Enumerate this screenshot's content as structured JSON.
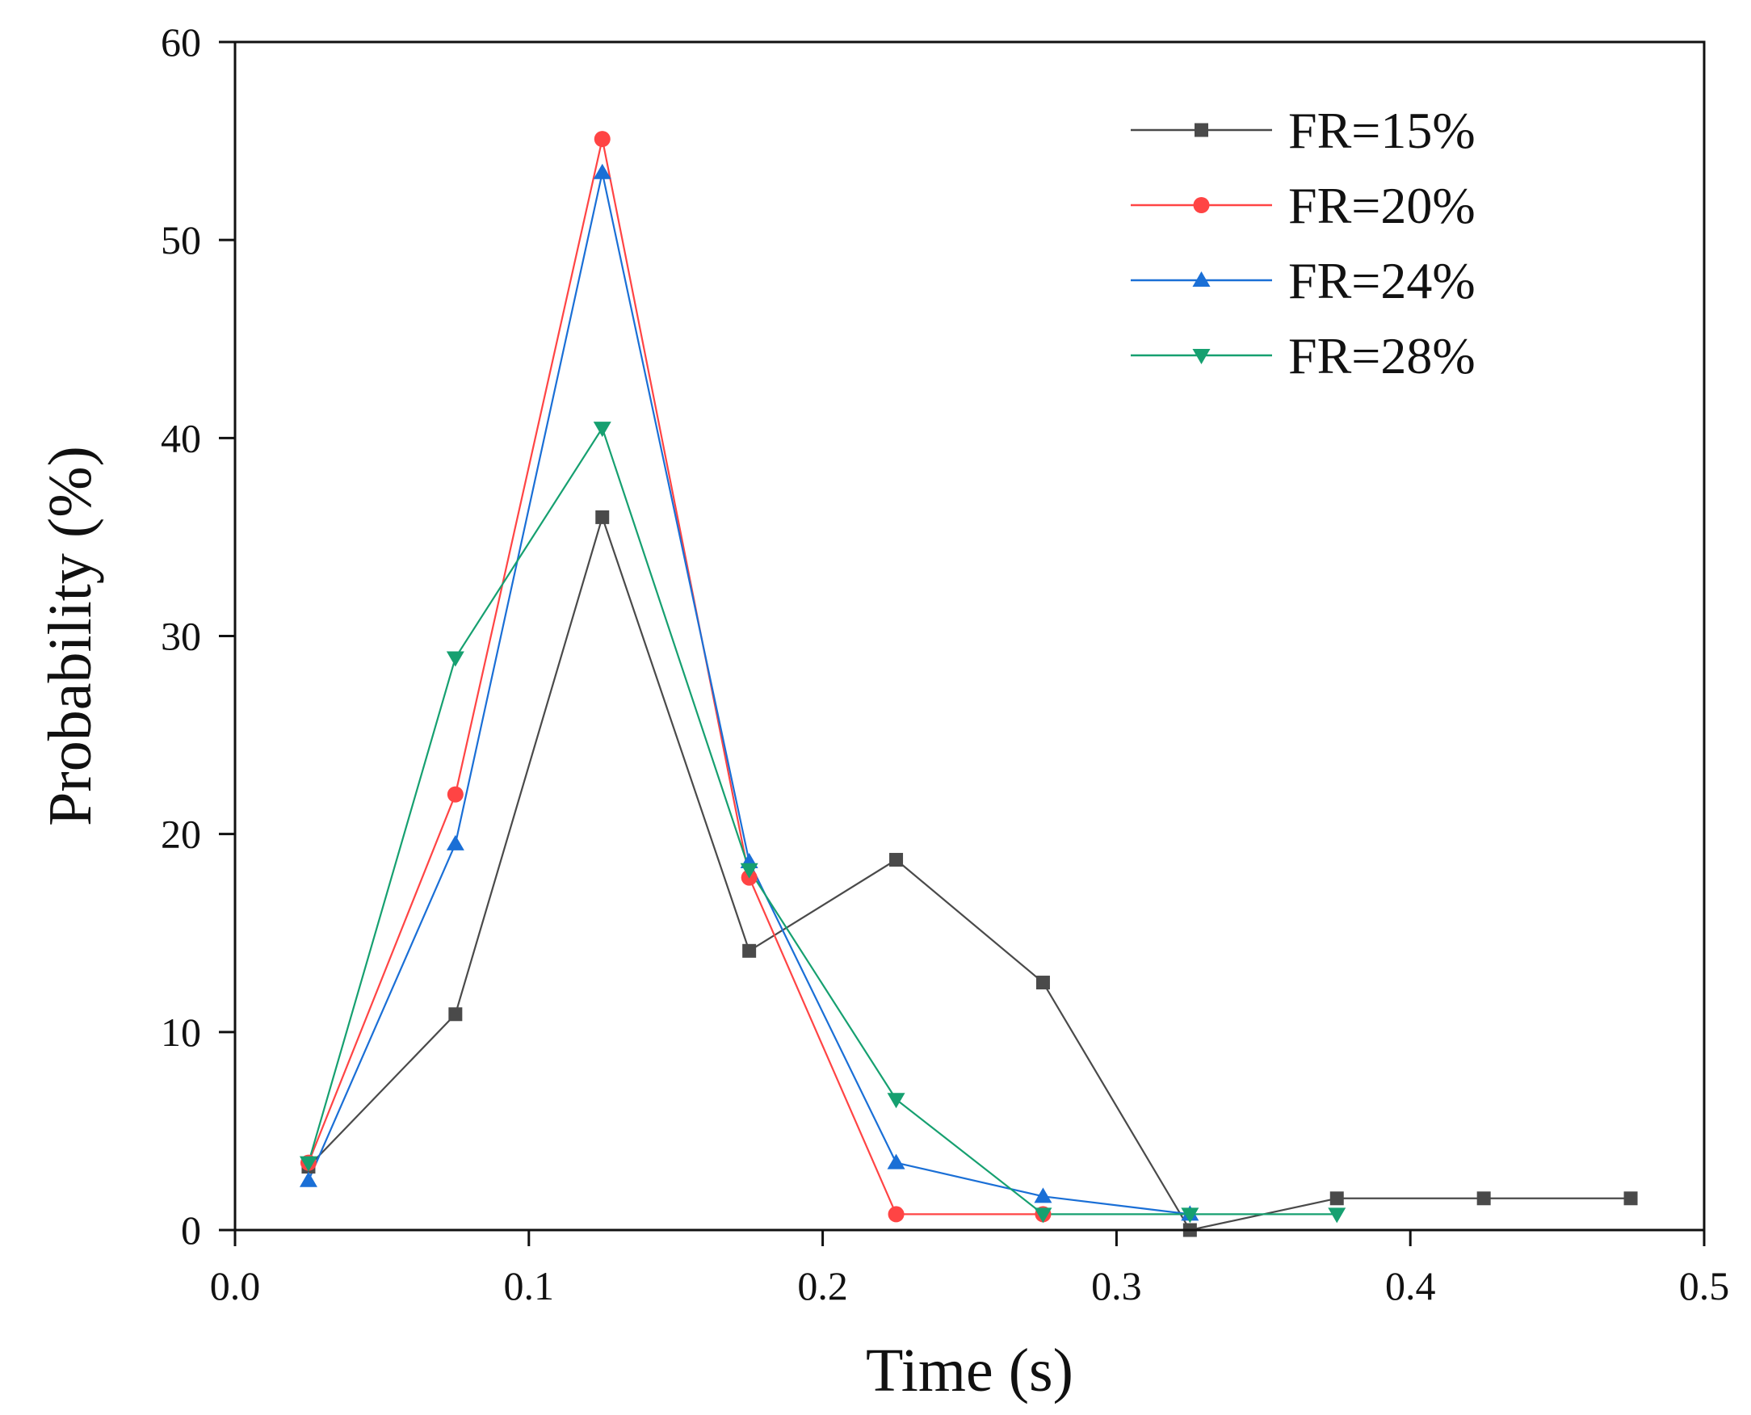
{
  "chart_data": {
    "type": "line",
    "title": "",
    "xlabel": "Time (s)",
    "ylabel": "Probability (%)",
    "xlim": [
      0.0,
      0.5
    ],
    "ylim": [
      0,
      60
    ],
    "xticks": [
      0.0,
      0.1,
      0.2,
      0.3,
      0.4,
      0.5
    ],
    "xtick_labels": [
      "0.0",
      "0.1",
      "0.2",
      "0.3",
      "0.4",
      "0.5"
    ],
    "yticks": [
      0,
      10,
      20,
      30,
      40,
      50,
      60
    ],
    "ytick_labels": [
      "0",
      "10",
      "20",
      "30",
      "40",
      "50",
      "60"
    ],
    "grid": false,
    "legend_position": "top-right",
    "series": [
      {
        "name": "FR=15%",
        "color": "#4a4a4a",
        "marker": "square",
        "x": [
          0.025,
          0.075,
          0.125,
          0.175,
          0.225,
          0.275,
          0.325,
          0.375,
          0.425,
          0.475
        ],
        "y": [
          3.2,
          10.9,
          36.0,
          14.1,
          18.7,
          12.5,
          0.0,
          1.6,
          1.6,
          1.6
        ]
      },
      {
        "name": "FR=20%",
        "color": "#ff4444",
        "marker": "circle",
        "x": [
          0.025,
          0.075,
          0.125,
          0.175,
          0.225,
          0.275
        ],
        "y": [
          3.4,
          22.0,
          55.1,
          17.8,
          0.8,
          0.8
        ]
      },
      {
        "name": "FR=24%",
        "color": "#1a6fd6",
        "marker": "triangle-up",
        "x": [
          0.025,
          0.075,
          0.125,
          0.175,
          0.225,
          0.275,
          0.325
        ],
        "y": [
          2.5,
          19.5,
          53.4,
          18.6,
          3.4,
          1.7,
          0.8
        ]
      },
      {
        "name": "FR=28%",
        "color": "#16a070",
        "marker": "triangle-down",
        "x": [
          0.025,
          0.075,
          0.125,
          0.175,
          0.225,
          0.275,
          0.325,
          0.375
        ],
        "y": [
          3.4,
          28.9,
          40.5,
          18.2,
          6.6,
          0.8,
          0.8,
          0.8
        ]
      }
    ]
  }
}
